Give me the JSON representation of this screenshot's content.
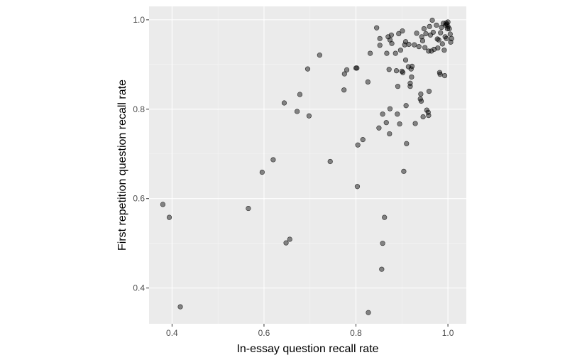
{
  "chart_data": {
    "type": "scatter",
    "title": "",
    "xlabel": "In-essay question recall rate",
    "ylabel": "First repetition question recall rate",
    "xlim": [
      0.35,
      1.04
    ],
    "ylim": [
      0.32,
      1.03
    ],
    "x_ticks": [
      0.4,
      0.6,
      0.8,
      1.0
    ],
    "x_tick_labels": [
      "0.4",
      "0.6",
      "0.8",
      "1.0"
    ],
    "y_ticks": [
      0.4,
      0.6,
      0.8,
      1.0
    ],
    "y_tick_labels": [
      "0.4",
      "0.6",
      "0.8",
      "1.0"
    ],
    "grid": true,
    "legend": "none",
    "colors": {
      "panel": "#ebebeb",
      "grid_major": "#ffffff",
      "point_fill": "#000000",
      "point_opacity": 0.45
    },
    "points": [
      [
        0.38,
        0.587
      ],
      [
        0.394,
        0.558
      ],
      [
        0.418,
        0.358
      ],
      [
        0.566,
        0.578
      ],
      [
        0.596,
        0.659
      ],
      [
        0.62,
        0.687
      ],
      [
        0.644,
        0.814
      ],
      [
        0.648,
        0.501
      ],
      [
        0.656,
        0.509
      ],
      [
        0.672,
        0.795
      ],
      [
        0.678,
        0.833
      ],
      [
        0.695,
        0.89
      ],
      [
        0.698,
        0.785
      ],
      [
        0.721,
        0.921
      ],
      [
        0.744,
        0.683
      ],
      [
        0.774,
        0.843
      ],
      [
        0.775,
        0.879
      ],
      [
        0.78,
        0.888
      ],
      [
        0.8,
        0.892
      ],
      [
        0.802,
        0.892
      ],
      [
        0.803,
        0.627
      ],
      [
        0.804,
        0.72
      ],
      [
        0.815,
        0.732
      ],
      [
        0.826,
        0.861
      ],
      [
        0.827,
        0.345
      ],
      [
        0.831,
        0.925
      ],
      [
        0.845,
        0.982
      ],
      [
        0.85,
        0.758
      ],
      [
        0.852,
        0.958
      ],
      [
        0.852,
        0.943
      ],
      [
        0.856,
        0.442
      ],
      [
        0.858,
        0.5
      ],
      [
        0.858,
        0.789
      ],
      [
        0.862,
        0.558
      ],
      [
        0.866,
        0.77
      ],
      [
        0.867,
        0.925
      ],
      [
        0.87,
        0.962
      ],
      [
        0.872,
        0.889
      ],
      [
        0.873,
        0.745
      ],
      [
        0.874,
        0.801
      ],
      [
        0.874,
        0.955
      ],
      [
        0.877,
        0.966
      ],
      [
        0.878,
        0.947
      ],
      [
        0.886,
        0.925
      ],
      [
        0.888,
        0.886
      ],
      [
        0.89,
        0.789
      ],
      [
        0.891,
        0.851
      ],
      [
        0.893,
        0.969
      ],
      [
        0.895,
        0.767
      ],
      [
        0.897,
        0.932
      ],
      [
        0.9,
        0.885
      ],
      [
        0.901,
        0.975
      ],
      [
        0.902,
        0.882
      ],
      [
        0.904,
        0.661
      ],
      [
        0.906,
        0.944
      ],
      [
        0.908,
        0.951
      ],
      [
        0.908,
        0.91
      ],
      [
        0.909,
        0.808
      ],
      [
        0.91,
        0.723
      ],
      [
        0.914,
        0.895
      ],
      [
        0.915,
        0.945
      ],
      [
        0.918,
        0.858
      ],
      [
        0.918,
        0.851
      ],
      [
        0.92,
        0.89
      ],
      [
        0.921,
        0.872
      ],
      [
        0.922,
        0.896
      ],
      [
        0.927,
        0.944
      ],
      [
        0.929,
        0.768
      ],
      [
        0.932,
        0.97
      ],
      [
        0.937,
        0.94
      ],
      [
        0.94,
        0.823
      ],
      [
        0.941,
        0.834
      ],
      [
        0.942,
        0.818
      ],
      [
        0.943,
        0.962
      ],
      [
        0.945,
        0.953
      ],
      [
        0.946,
        0.783
      ],
      [
        0.948,
        0.98
      ],
      [
        0.95,
        0.938
      ],
      [
        0.952,
        0.969
      ],
      [
        0.954,
        0.798
      ],
      [
        0.957,
        0.793
      ],
      [
        0.958,
        0.786
      ],
      [
        0.958,
        0.93
      ],
      [
        0.959,
        0.84
      ],
      [
        0.96,
        0.985
      ],
      [
        0.962,
        0.966
      ],
      [
        0.964,
        0.93
      ],
      [
        0.966,
        0.999
      ],
      [
        0.968,
        0.972
      ],
      [
        0.97,
        0.934
      ],
      [
        0.975,
        0.988
      ],
      [
        0.977,
        0.957
      ],
      [
        0.978,
        0.937
      ],
      [
        0.98,
        0.955
      ],
      [
        0.982,
        0.882
      ],
      [
        0.983,
        0.878
      ],
      [
        0.984,
        0.971
      ],
      [
        0.986,
        0.983
      ],
      [
        0.988,
        0.946
      ],
      [
        0.99,
        0.992
      ],
      [
        0.992,
        0.932
      ],
      [
        0.993,
        0.875
      ],
      [
        0.994,
        0.962
      ],
      [
        0.995,
        0.988
      ],
      [
        0.996,
        0.993
      ],
      [
        0.997,
        0.958
      ],
      [
        0.998,
        0.99
      ],
      [
        0.999,
        0.98
      ],
      [
        1.0,
        0.985
      ],
      [
        1.0,
        0.995
      ],
      [
        1.003,
        0.98
      ],
      [
        1.005,
        0.968
      ],
      [
        1.006,
        0.95
      ],
      [
        1.008,
        0.958
      ]
    ]
  }
}
